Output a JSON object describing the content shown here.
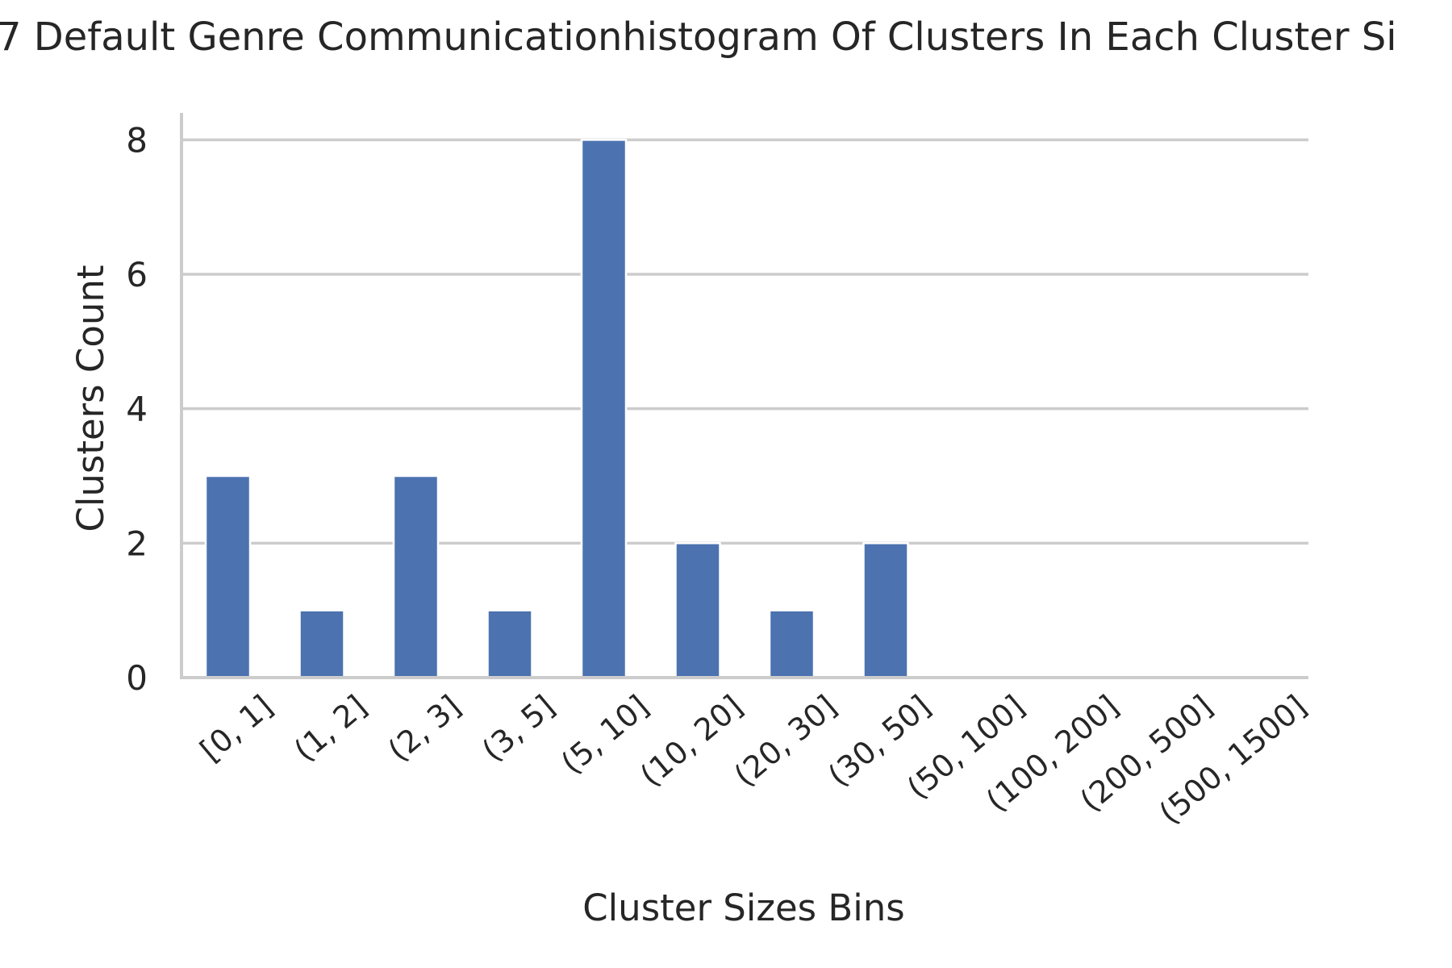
{
  "chart_data": {
    "type": "bar",
    "title": "7 Default Genre Communicationhistogram Of Clusters In Each Cluster Si",
    "xlabel": "Cluster Sizes Bins",
    "ylabel": "Clusters Count",
    "categories": [
      "[0, 1]",
      "(1, 2]",
      "(2, 3]",
      "(3, 5]",
      "(5, 10]",
      "(10, 20]",
      "(20, 30]",
      "(30, 50]",
      "(50, 100]",
      "(100, 200]",
      "(200, 500]",
      "(500, 1500]"
    ],
    "values": [
      3,
      1,
      3,
      1,
      8,
      2,
      1,
      2,
      0,
      0,
      0,
      0
    ],
    "ylim": [
      0,
      8.4
    ],
    "yticks": [
      0,
      2,
      4,
      6,
      8
    ],
    "grid": true,
    "colors": {
      "bar": "#4c72b0",
      "grid": "#cccccc",
      "axis": "#cccccc",
      "text": "#262626"
    }
  }
}
